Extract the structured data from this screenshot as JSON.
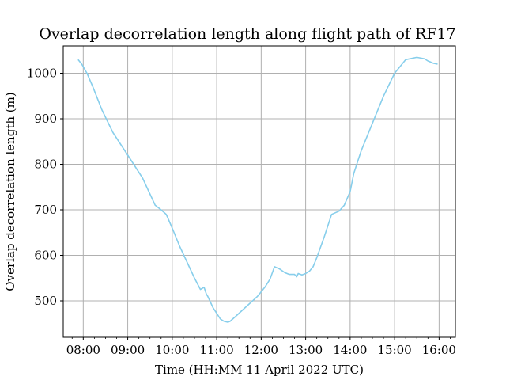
{
  "chart_data": {
    "type": "line",
    "title": "Overlap decorrelation length along flight path of RF17",
    "xlabel": "Time (HH:MM 11 April 2022 UTC)",
    "ylabel": "Overlap decorrelation length (m)",
    "xlim": [
      "07:33",
      "16:22"
    ],
    "ylim": [
      420,
      1060
    ],
    "grid": true,
    "x_ticks": [
      "08:00",
      "09:00",
      "10:00",
      "11:00",
      "12:00",
      "13:00",
      "14:00",
      "15:00",
      "16:00"
    ],
    "y_ticks": [
      500,
      600,
      700,
      800,
      900,
      1000
    ],
    "series_color": "#87CEEB",
    "series": [
      {
        "x": [
          "07:53",
          "07:58",
          "08:05",
          "08:13",
          "08:25",
          "08:40",
          "09:00",
          "09:20",
          "09:37",
          "09:45",
          "09:52",
          "10:00",
          "10:10",
          "10:20",
          "10:30",
          "10:38",
          "10:43",
          "10:46",
          "10:48",
          "10:55",
          "11:05",
          "11:10",
          "11:15",
          "11:18",
          "11:25",
          "11:35",
          "11:45",
          "11:55",
          "12:05",
          "12:12",
          "12:18",
          "12:25",
          "12:32",
          "12:38",
          "12:45",
          "12:48",
          "12:50",
          "12:55",
          "13:00",
          "13:05",
          "13:10",
          "13:15",
          "13:25",
          "13:35",
          "13:45",
          "13:52",
          "14:00",
          "14:05",
          "14:15",
          "14:30",
          "14:45",
          "15:00",
          "15:15",
          "15:30",
          "15:40",
          "15:45",
          "15:48",
          "15:52",
          "15:58"
        ],
        "y": [
          1030,
          1020,
          1000,
          970,
          920,
          870,
          820,
          770,
          710,
          700,
          690,
          660,
          620,
          585,
          550,
          525,
          530,
          515,
          510,
          485,
          460,
          455,
          453,
          455,
          465,
          480,
          495,
          510,
          530,
          548,
          575,
          570,
          562,
          558,
          558,
          553,
          560,
          557,
          560,
          565,
          575,
          595,
          640,
          690,
          697,
          710,
          740,
          780,
          830,
          890,
          950,
          1000,
          1030,
          1035,
          1032,
          1027,
          1025,
          1022,
          1020
        ]
      }
    ]
  }
}
